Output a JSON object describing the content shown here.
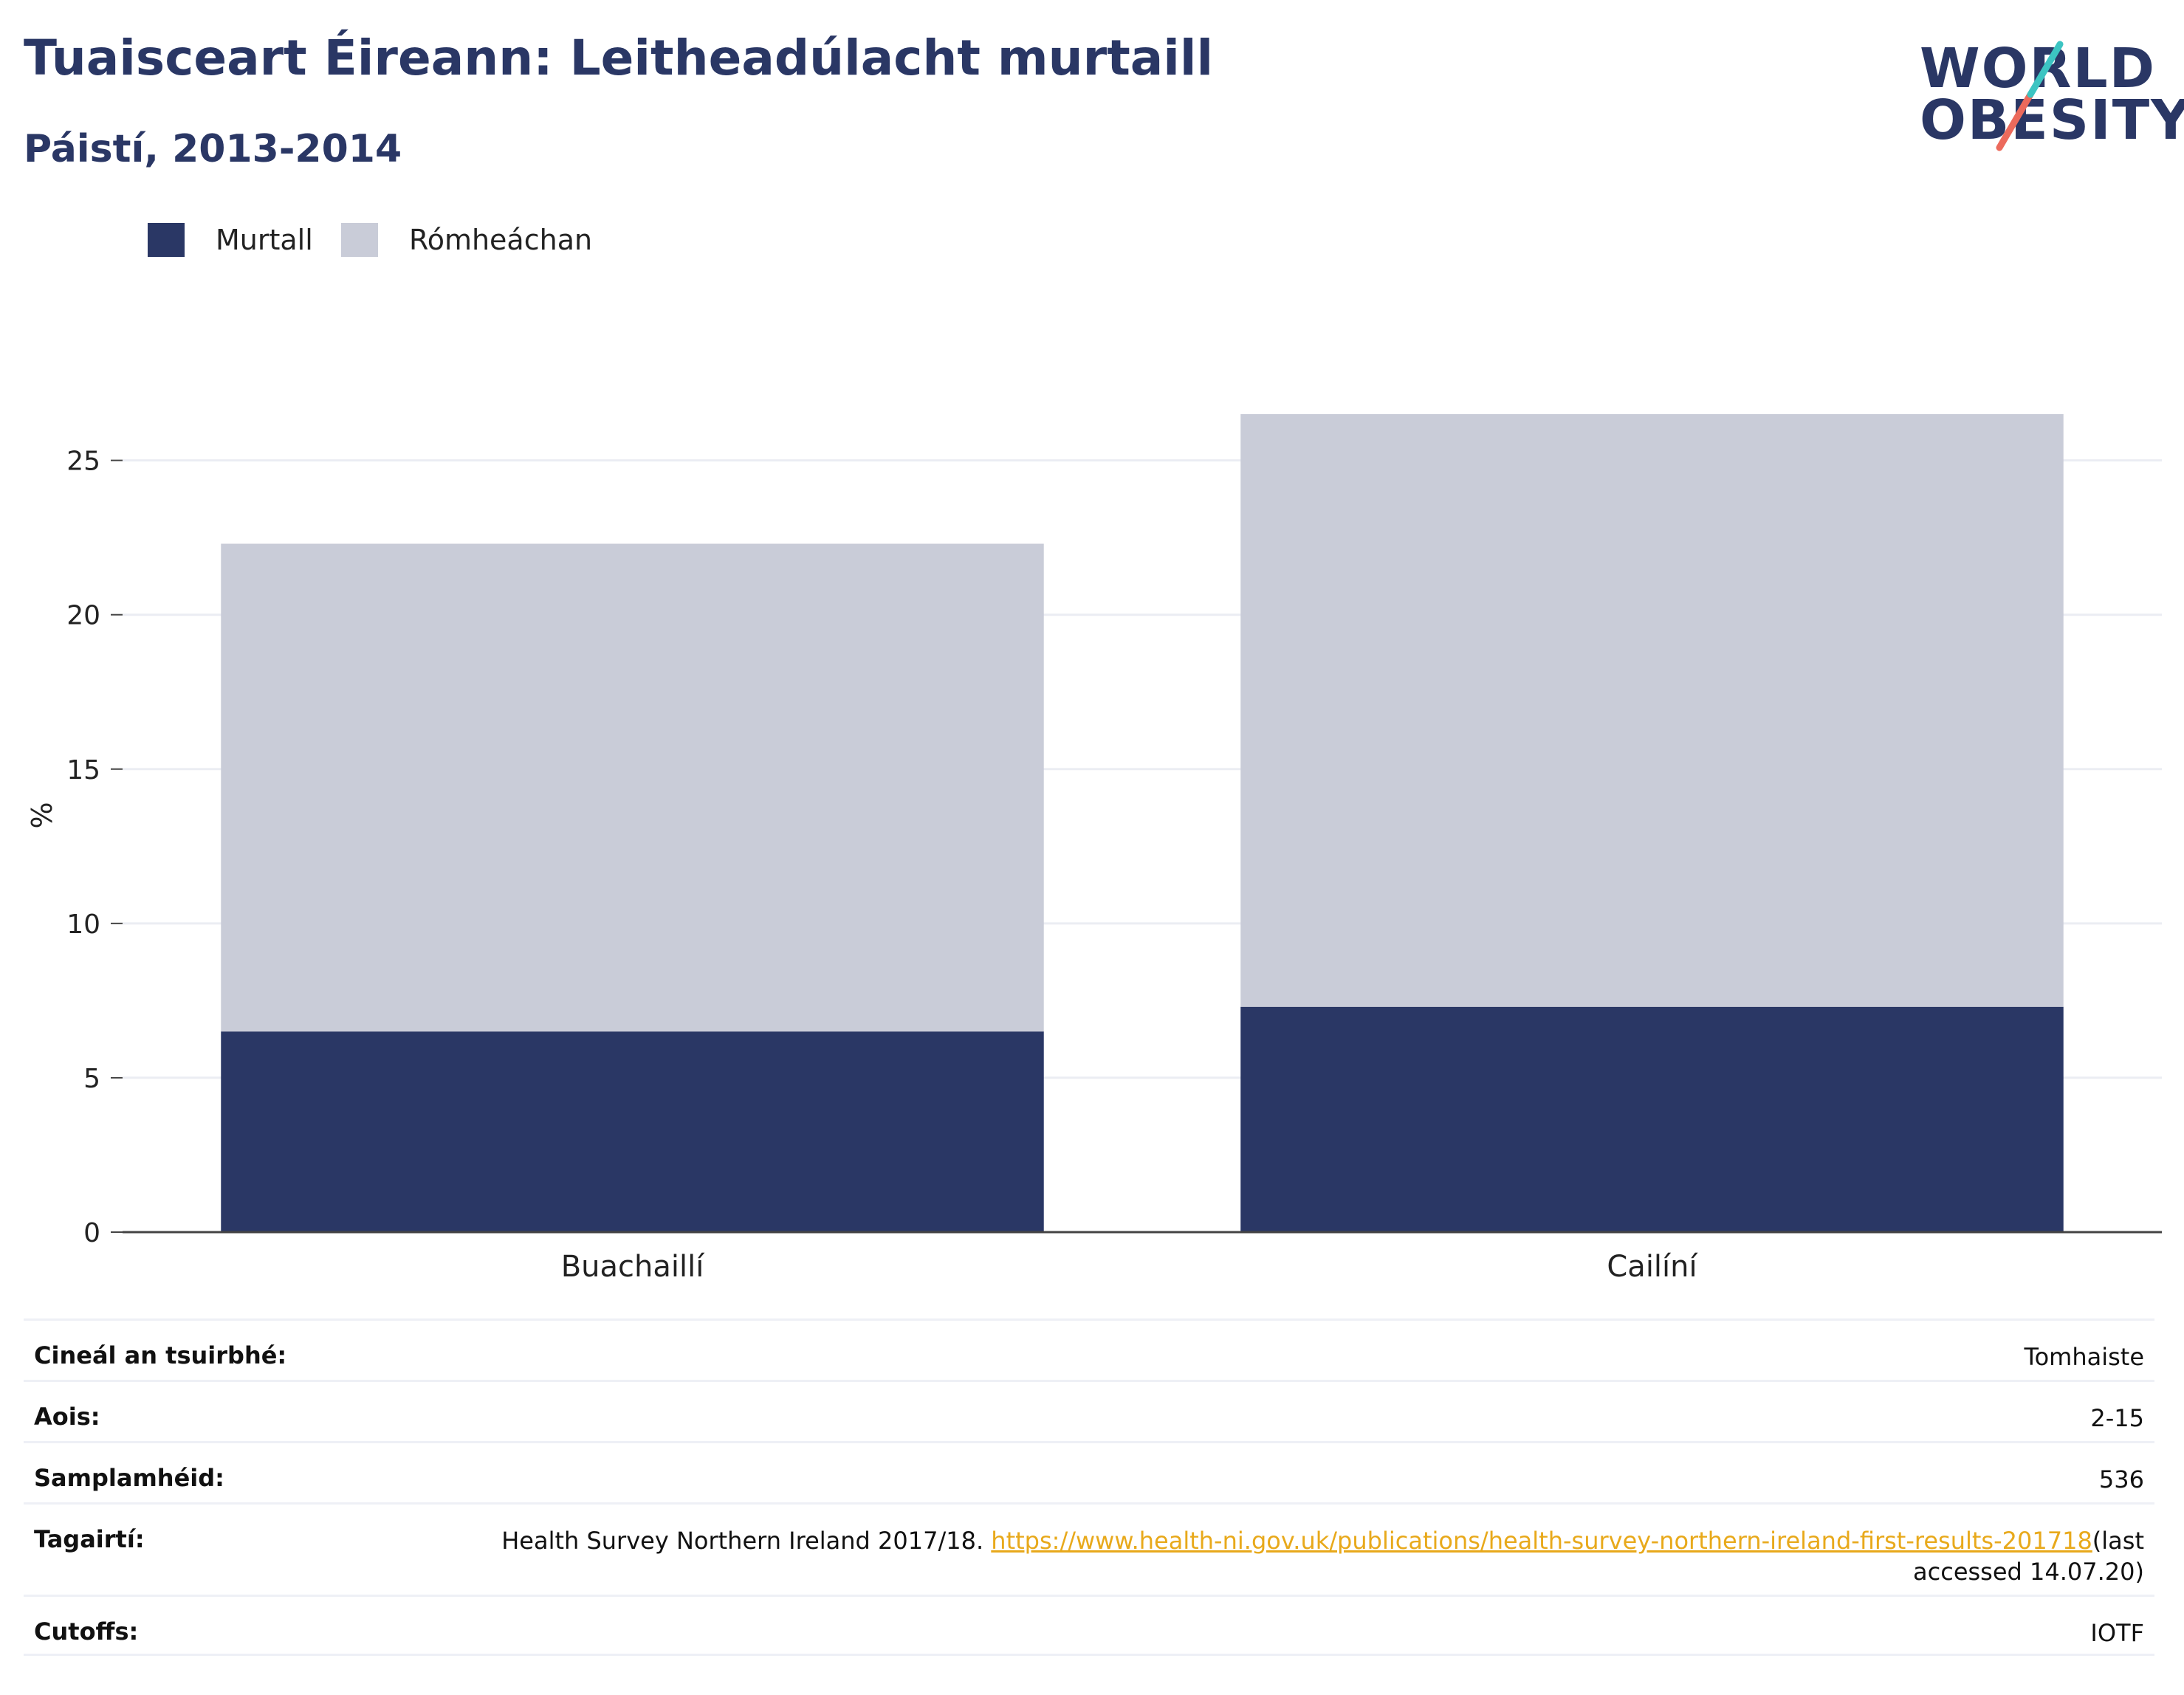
{
  "header": {
    "title": "Tuaisceart Éireann: Leitheadúlacht murtaill",
    "subtitle": "Páistí, 2013-2014"
  },
  "logo": {
    "line1": "WORLD",
    "line2": "OBESITY"
  },
  "colors": {
    "murtall": "#2a3765",
    "romheachan": "#c9ccd8",
    "slash_teal": "#3cc4c2",
    "slash_coral": "#ec6a5c",
    "link": "#e8a91b"
  },
  "chart_data": {
    "type": "bar",
    "stacked": true,
    "categories": [
      "Buachaillí",
      "Cailíní"
    ],
    "series": [
      {
        "name": "Murtall",
        "values": [
          6.5,
          7.3
        ]
      },
      {
        "name": "Rómheáchan",
        "values": [
          15.8,
          19.2
        ]
      }
    ],
    "ylabel": "%",
    "xlabel": "",
    "ylim": [
      0,
      27
    ],
    "yticks": [
      0,
      5,
      10,
      15,
      20,
      25
    ],
    "grid": true,
    "legend_position": "top-left"
  },
  "meta": {
    "survey_type_label": "Cineál an tsuirbhé:",
    "survey_type_value": "Tomhaiste",
    "age_label": "Aois:",
    "age_value": "2-15",
    "sample_label": "Samplamhéid:",
    "sample_value": "536",
    "refs_label": "Tagairtí:",
    "refs_text": "Health Survey Northern Ireland 2017/18.",
    "refs_link": "https://www.health-ni.gov.uk/publications/health-survey-northern-ireland-first-results-201718",
    "refs_suffix": "(last accessed 14.07.20)",
    "cutoffs_label": "Cutoffs:",
    "cutoffs_value": "IOTF"
  }
}
